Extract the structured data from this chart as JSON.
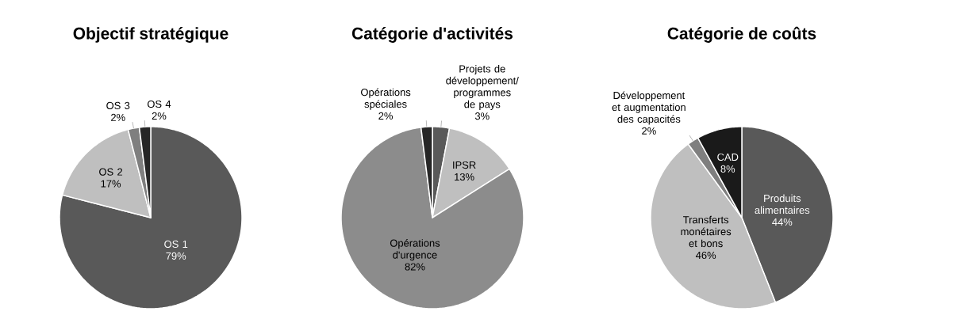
{
  "chart_data": [
    {
      "type": "pie",
      "title": "Objectif stratégique",
      "categories": [
        "OS 1",
        "OS 2",
        "OS 3",
        "OS 4"
      ],
      "values": [
        79,
        17,
        2,
        2
      ],
      "value_labels": [
        "79%",
        "17%",
        "2%",
        "2%"
      ],
      "colors": [
        "#595959",
        "#bfbfbf",
        "#7f7f7f",
        "#262626"
      ]
    },
    {
      "type": "pie",
      "title": "Catégorie d'activités",
      "categories": [
        "Projets de développement/ programmes de pays",
        "IPSR",
        "Opérations d'urgence",
        "Opérations spéciales"
      ],
      "values": [
        3,
        13,
        82,
        2
      ],
      "value_labels": [
        "3%",
        "13%",
        "82%",
        "2%"
      ],
      "colors": [
        "#595959",
        "#bfbfbf",
        "#8c8c8c",
        "#262626"
      ]
    },
    {
      "type": "pie",
      "title": "Catégorie de coûts",
      "categories": [
        "Produits alimentaires",
        "Transferts monétaires et bons",
        "Développement et augmentation des capacités",
        "CAD"
      ],
      "values": [
        44,
        46,
        2,
        8
      ],
      "value_labels": [
        "44%",
        "46%",
        "2%",
        "8%"
      ],
      "colors": [
        "#595959",
        "#bfbfbf",
        "#7f7f7f",
        "#1a1a1a"
      ]
    }
  ]
}
